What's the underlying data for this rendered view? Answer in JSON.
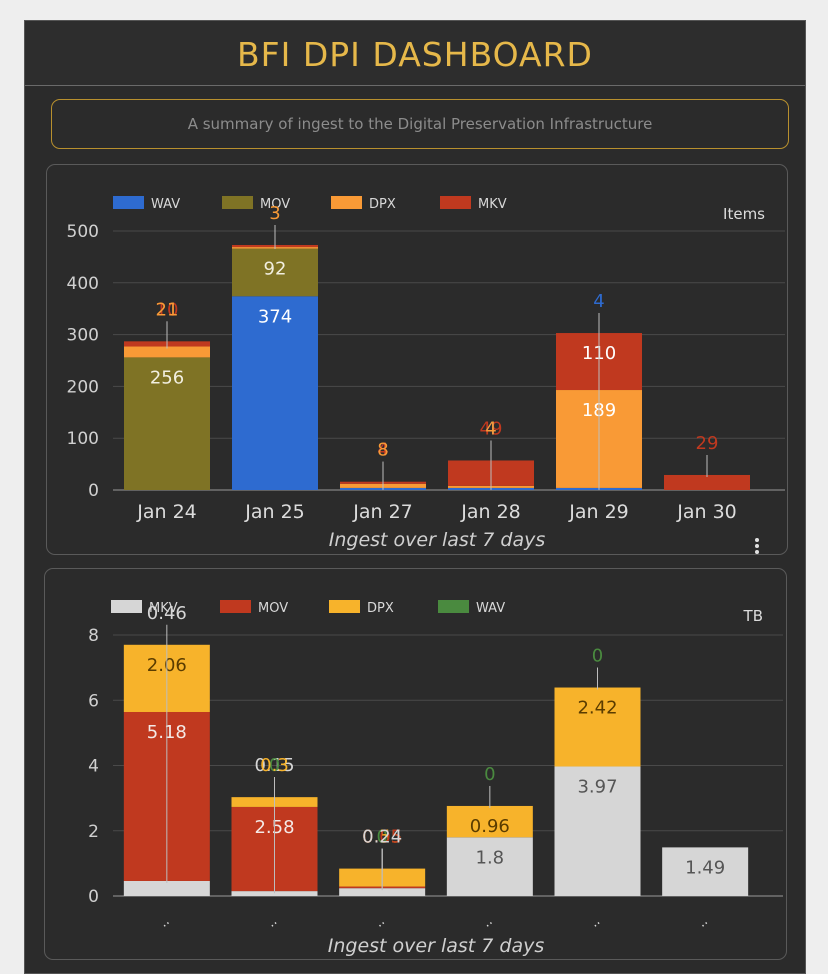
{
  "header": {
    "title": "BFI DPI DASHBOARD",
    "subtitle": "A summary of ingest to the Digital Preservation Infrastructure"
  },
  "chart_data": [
    {
      "type": "bar",
      "stacked": true,
      "unit_label": "Items",
      "caption": "Ingest over last 7 days",
      "categories": [
        "Jan 24",
        "Jan 25",
        "Jan 27",
        "Jan 28",
        "Jan 29",
        "Jan 30"
      ],
      "ylim": [
        0,
        500
      ],
      "yticks": [
        0,
        100,
        200,
        300,
        400,
        500
      ],
      "grid": true,
      "legend_position": "top-left",
      "series": [
        {
          "name": "WAV",
          "color": "#2e6bd0",
          "values": [
            0,
            374,
            4,
            4,
            4,
            0
          ]
        },
        {
          "name": "MOV",
          "color": "#7f7325",
          "values": [
            256,
            92,
            0,
            0,
            0,
            0
          ]
        },
        {
          "name": "DPX",
          "color": "#f99a36",
          "values": [
            21,
            3,
            8,
            4,
            189,
            0
          ]
        },
        {
          "name": "MKV",
          "color": "#c0391f",
          "values": [
            10,
            4,
            4,
            49,
            110,
            29
          ]
        }
      ],
      "data_labels": [
        {
          "series": 1,
          "category": 0,
          "text": "256"
        },
        {
          "series": 3,
          "category": 0,
          "text": "10"
        },
        {
          "series": 2,
          "category": 0,
          "text": "21"
        },
        {
          "series": 0,
          "category": 1,
          "text": "374"
        },
        {
          "series": 1,
          "category": 1,
          "text": "92"
        },
        {
          "series": 2,
          "category": 1,
          "text": "3"
        },
        {
          "series": 0,
          "category": 2,
          "text": "4"
        },
        {
          "series": 3,
          "category": 2,
          "text": "4"
        },
        {
          "series": 2,
          "category": 2,
          "text": "8"
        },
        {
          "series": 3,
          "category": 3,
          "text": "49"
        },
        {
          "series": 0,
          "category": 3,
          "text": "4"
        },
        {
          "series": 2,
          "category": 3,
          "text": "4"
        },
        {
          "series": 3,
          "category": 4,
          "text": "110"
        },
        {
          "series": 2,
          "category": 4,
          "text": "189"
        },
        {
          "series": 0,
          "category": 4,
          "text": "4"
        },
        {
          "series": 3,
          "category": 5,
          "text": "29"
        }
      ]
    },
    {
      "type": "bar",
      "stacked": true,
      "unit_label": "TB",
      "caption": "Ingest over last 7 days",
      "categories": [
        "..",
        "..",
        "..",
        "..",
        "..",
        ".."
      ],
      "ylim": [
        0,
        8
      ],
      "yticks": [
        0,
        2,
        4,
        6,
        8
      ],
      "grid": true,
      "legend_position": "top-left",
      "series": [
        {
          "name": "MKV",
          "color": "#d6d6d6",
          "values": [
            0.46,
            0.15,
            0.24,
            1.8,
            3.97,
            1.49
          ]
        },
        {
          "name": "MOV",
          "color": "#c0391f",
          "values": [
            5.18,
            2.58,
            0.05,
            0,
            0,
            0
          ]
        },
        {
          "name": "DPX",
          "color": "#f7b32b",
          "values": [
            2.06,
            0.3,
            0.55,
            0.96,
            2.42,
            0
          ]
        },
        {
          "name": "WAV",
          "color": "#4a8a3f",
          "values": [
            0,
            0,
            0,
            0,
            0,
            0
          ]
        }
      ],
      "data_labels": [
        {
          "series": 2,
          "category": 0,
          "text": "2.06"
        },
        {
          "series": 1,
          "category": 0,
          "text": "5.18"
        },
        {
          "series": 0,
          "category": 0,
          "text": "0.46"
        },
        {
          "series": 1,
          "category": 1,
          "text": "2.58"
        },
        {
          "series": 0,
          "category": 1,
          "text": "0.15"
        },
        {
          "series": 3,
          "category": 1,
          "text": "0"
        },
        {
          "series": 2,
          "category": 1,
          "text": "0.3"
        },
        {
          "series": 3,
          "category": 2,
          "text": "0"
        },
        {
          "series": 2,
          "category": 2,
          "text": "0.55"
        },
        {
          "series": 1,
          "category": 2,
          "text": "0.05"
        },
        {
          "series": 0,
          "category": 2,
          "text": "0.24"
        },
        {
          "series": 3,
          "category": 3,
          "text": "0"
        },
        {
          "series": 2,
          "category": 3,
          "text": "0.96"
        },
        {
          "series": 0,
          "category": 3,
          "text": "1.8"
        },
        {
          "series": 3,
          "category": 4,
          "text": "0"
        },
        {
          "series": 2,
          "category": 4,
          "text": "2.42"
        },
        {
          "series": 0,
          "category": 4,
          "text": "3.97"
        },
        {
          "series": 0,
          "category": 5,
          "text": "1.49"
        }
      ]
    }
  ]
}
